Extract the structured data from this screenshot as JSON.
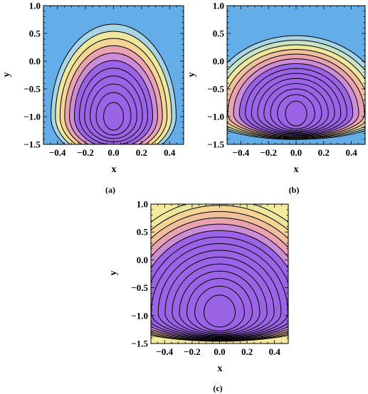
{
  "colors": {
    "low": "#9b63e6",
    "ramp": [
      "#9b63e6",
      "#cc8cd6",
      "#e8a2b0",
      "#f0bf9c",
      "#f5d596",
      "#eee79e",
      "#c9e4c4",
      "#a7d4e6",
      "#63aee8"
    ],
    "contour_line": "#000000"
  },
  "chart_data": [
    {
      "panel": "a",
      "caption": "(a)",
      "type": "contour",
      "xlabel": "x",
      "ylabel": "y",
      "xlim": [
        -0.5,
        0.5
      ],
      "ylim": [
        -1.5,
        1.0
      ],
      "xticks": [
        -0.4,
        -0.2,
        0.0,
        0.2,
        0.4
      ],
      "xtick_labels": [
        "−0.4",
        "−0.2",
        "0.0",
        "0.2",
        "0.4"
      ],
      "yticks": [
        1.0,
        0.5,
        0.0,
        -0.5,
        -1.0,
        -1.5
      ],
      "ytick_labels": [
        "1.0",
        "0.5",
        "0.0",
        "−0.5",
        "−1.0",
        "−1.5"
      ],
      "minimum": {
        "x": 0.0,
        "y": -1.0
      },
      "max_level_region": "top",
      "contour_levels": 10
    },
    {
      "panel": "b",
      "caption": "(b)",
      "type": "contour",
      "xlabel": "x",
      "ylabel": "y",
      "xlim": [
        -0.5,
        0.5
      ],
      "ylim": [
        -1.5,
        1.0
      ],
      "xticks": [
        -0.4,
        -0.2,
        0.0,
        0.2,
        0.4
      ],
      "xtick_labels": [
        "−0.4",
        "−0.2",
        "0.0",
        "0.2",
        "0.4"
      ],
      "yticks": [
        1.0,
        0.5,
        0.0,
        -0.5,
        -1.0,
        -1.5
      ],
      "ytick_labels": [
        "1.0",
        "0.5",
        "0.0",
        "−0.5",
        "−1.0",
        "−1.5"
      ],
      "minimum": {
        "x": 0.0,
        "y": -0.95
      },
      "max_level_region": "top",
      "contour_levels": 13
    },
    {
      "panel": "c",
      "caption": "(c)",
      "type": "contour",
      "xlabel": "x",
      "ylabel": "y",
      "xlim": [
        -0.5,
        0.5
      ],
      "ylim": [
        -1.5,
        1.0
      ],
      "xticks": [
        -0.4,
        -0.2,
        0.0,
        0.2,
        0.4
      ],
      "xtick_labels": [
        "−0.4",
        "−0.2",
        "0.0",
        "0.2",
        "0.4"
      ],
      "yticks": [
        1.0,
        0.5,
        0.0,
        -0.5,
        -1.0,
        -1.5
      ],
      "ytick_labels": [
        "1.0",
        "0.5",
        "0.0",
        "−0.5",
        "−1.0",
        "−1.5"
      ],
      "minimum": {
        "x": 0.0,
        "y": -0.95
      },
      "max_level_region": "top",
      "contour_levels": 14
    }
  ]
}
